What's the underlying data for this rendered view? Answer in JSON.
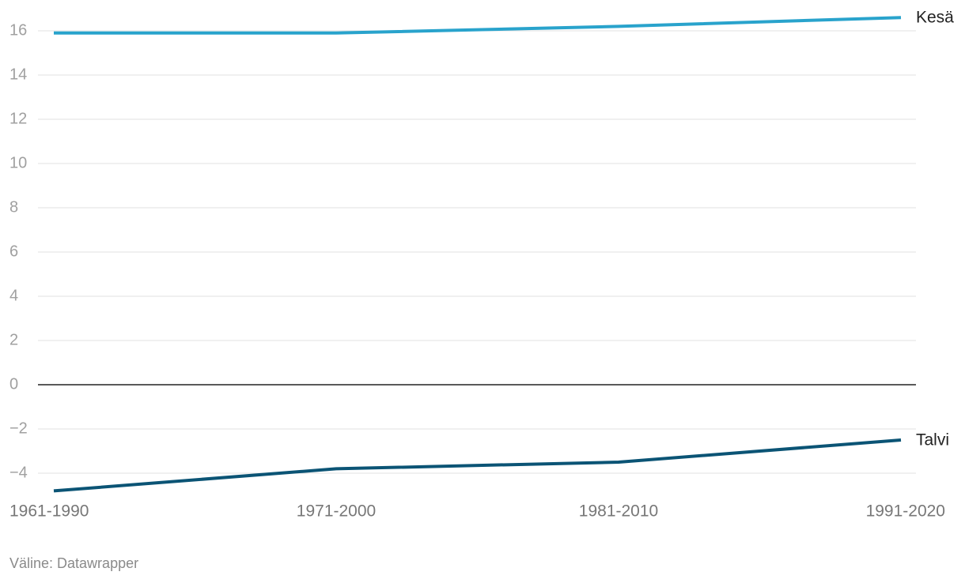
{
  "chart_data": {
    "type": "line",
    "categories": [
      "1961-1990",
      "1971-2000",
      "1981-2010",
      "1991-2020"
    ],
    "series": [
      {
        "name": "Kesä",
        "color": "#29a3cc",
        "values": [
          15.9,
          15.9,
          16.2,
          16.6
        ]
      },
      {
        "name": "Talvi",
        "color": "#0b5475",
        "values": [
          -4.8,
          -3.8,
          -3.5,
          -2.5
        ]
      }
    ],
    "ylim": [
      -4.8,
      16.6
    ],
    "yticks": [
      {
        "value": -4,
        "label": "−4"
      },
      {
        "value": -2,
        "label": "−2"
      },
      0,
      2,
      4,
      6,
      8,
      10,
      12,
      14,
      16
    ],
    "grid": true,
    "source": "Väline: Datawrapper"
  }
}
